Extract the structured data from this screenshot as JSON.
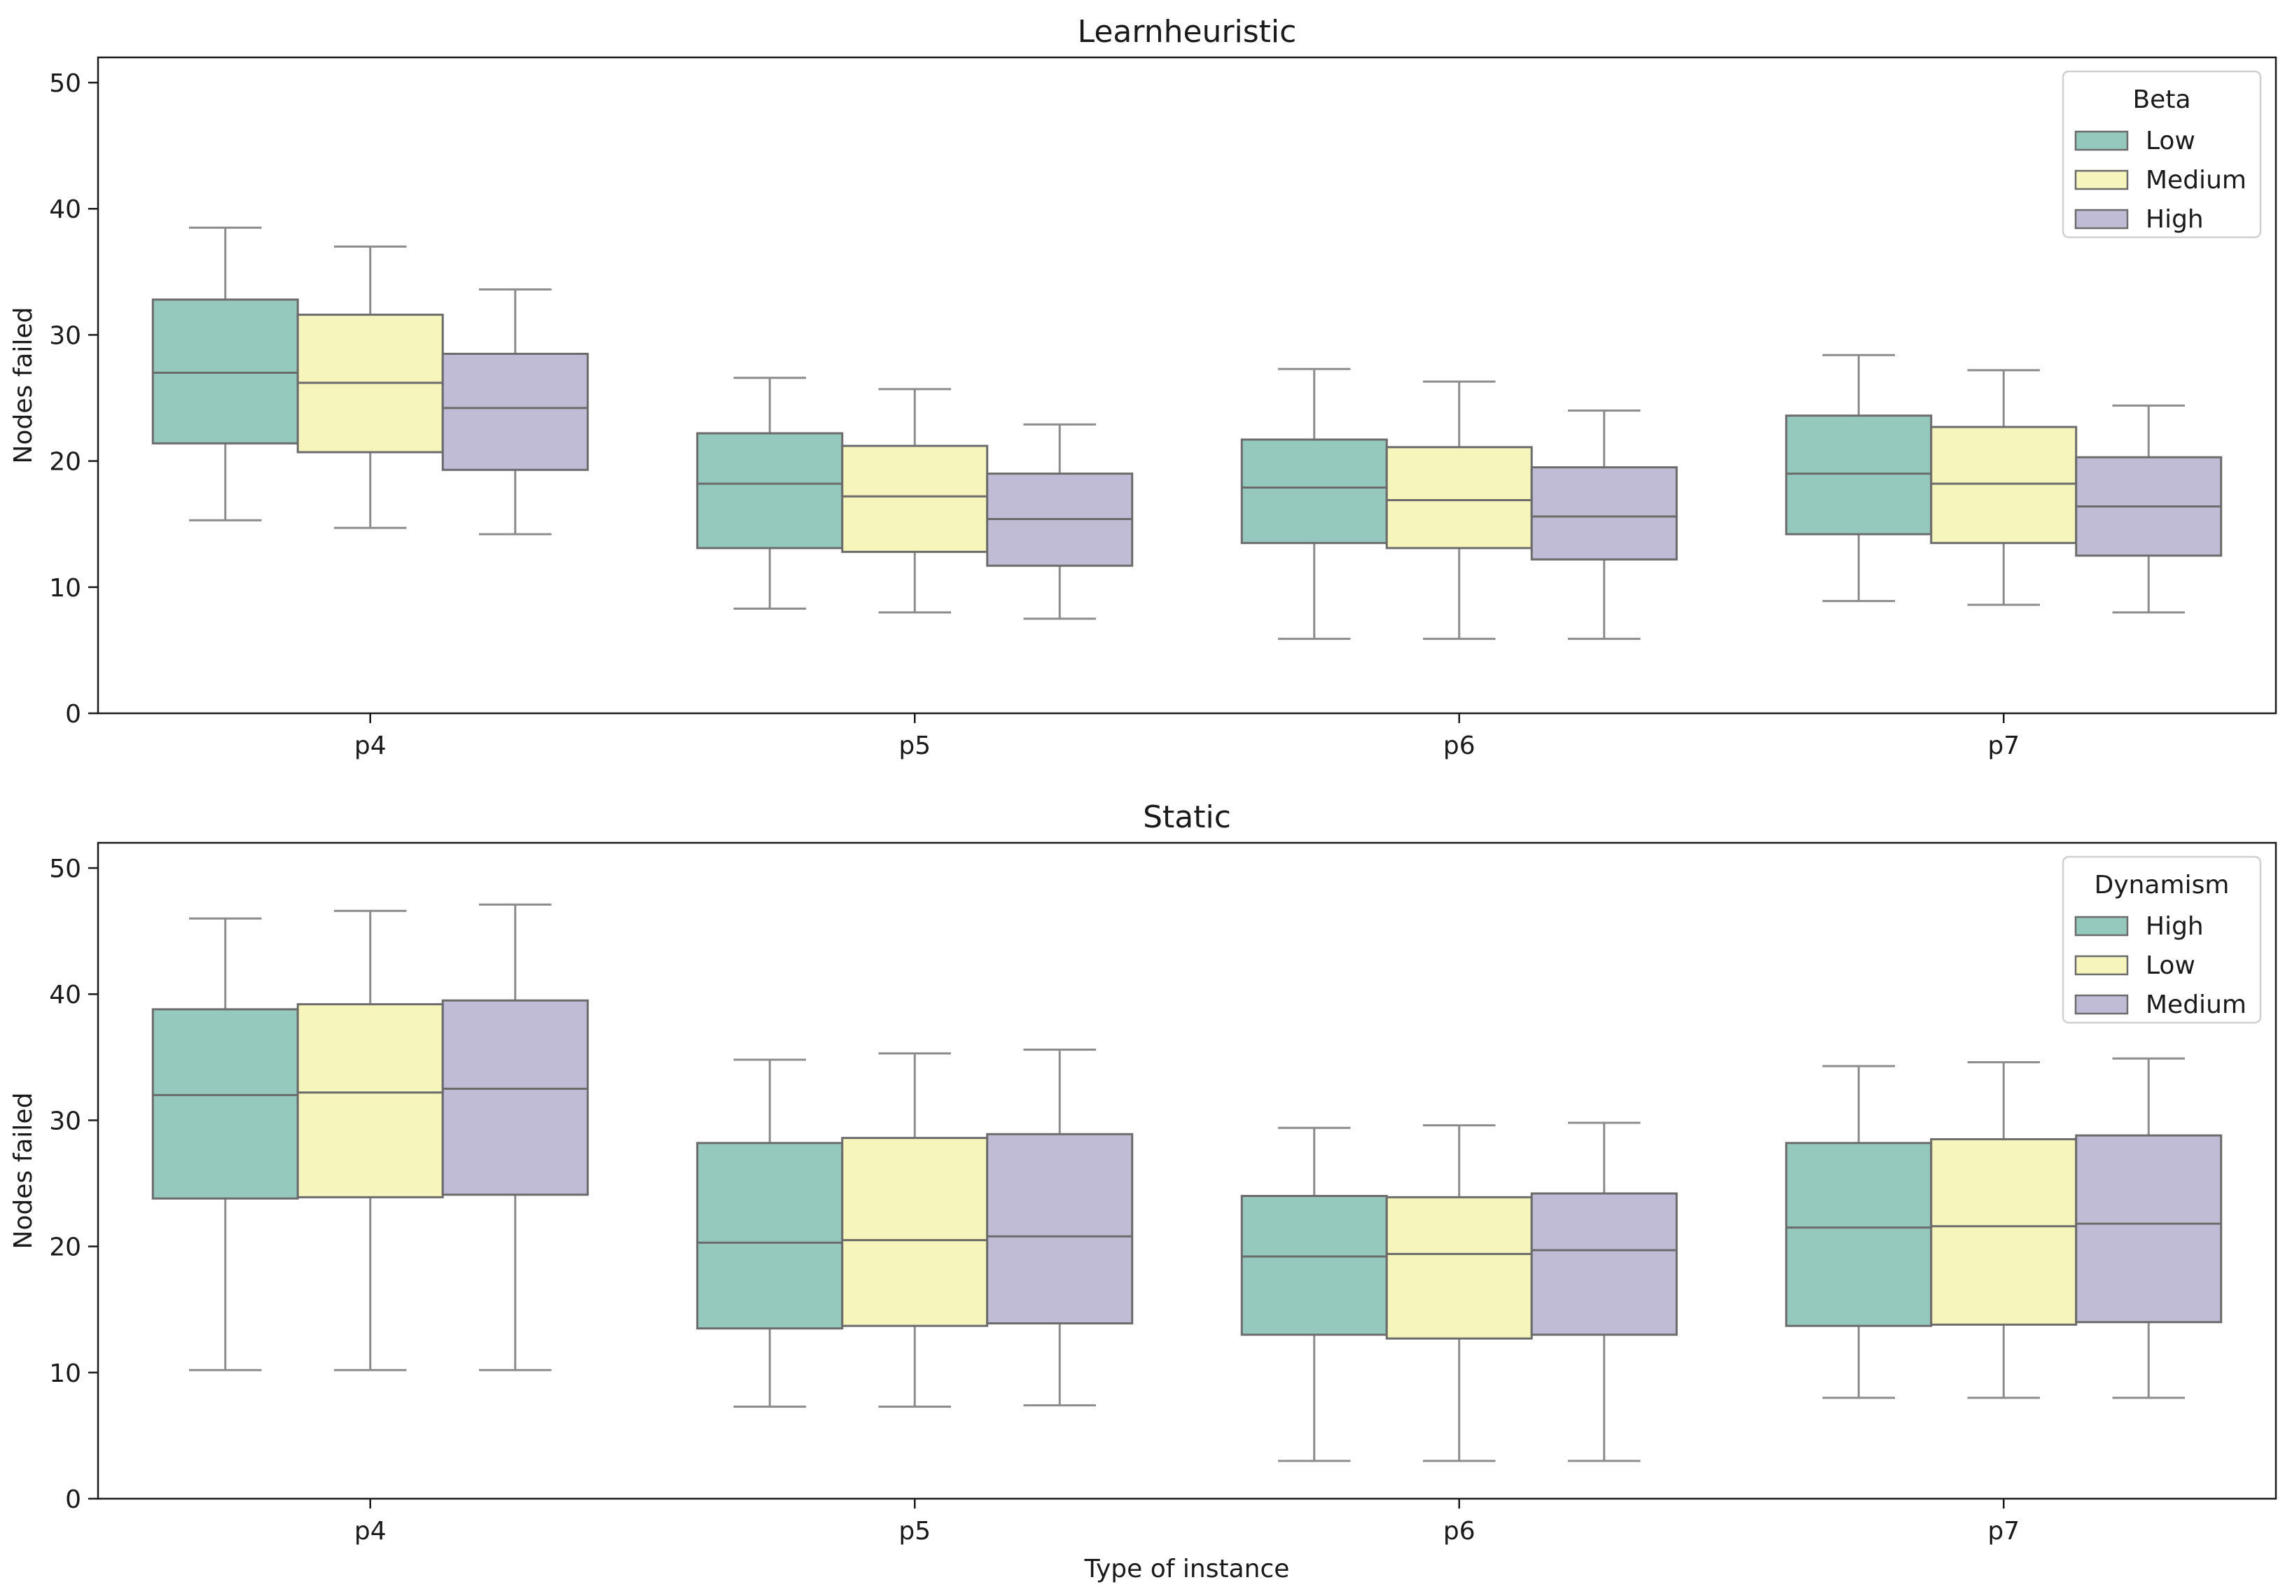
{
  "chart_data": [
    {
      "type": "box",
      "title": "Learnheuristic",
      "xlabel": "",
      "ylabel": "Nodes failed",
      "ylim": [
        0,
        52
      ],
      "yticks": [
        0,
        10,
        20,
        30,
        40,
        50
      ],
      "grid": false,
      "categories": [
        "p4",
        "p5",
        "p6",
        "p7"
      ],
      "legend": {
        "title": "Beta",
        "placement": "top-right",
        "entries": [
          "Low",
          "Medium",
          "High"
        ]
      },
      "series": [
        {
          "name": "Low",
          "color": "#96c9be",
          "boxes": [
            {
              "whisker_low": 15.3,
              "q1": 21.4,
              "median": 27.0,
              "q3": 32.8,
              "whisker_high": 38.5
            },
            {
              "whisker_low": 8.3,
              "q1": 13.1,
              "median": 18.2,
              "q3": 22.2,
              "whisker_high": 26.6
            },
            {
              "whisker_low": 5.9,
              "q1": 13.5,
              "median": 17.9,
              "q3": 21.7,
              "whisker_high": 27.3
            },
            {
              "whisker_low": 8.9,
              "q1": 14.2,
              "median": 19.0,
              "q3": 23.6,
              "whisker_high": 28.4
            }
          ]
        },
        {
          "name": "Medium",
          "color": "#f5f5bc",
          "boxes": [
            {
              "whisker_low": 14.7,
              "q1": 20.7,
              "median": 26.2,
              "q3": 31.6,
              "whisker_high": 37.0
            },
            {
              "whisker_low": 8.0,
              "q1": 12.8,
              "median": 17.2,
              "q3": 21.2,
              "whisker_high": 25.7
            },
            {
              "whisker_low": 5.9,
              "q1": 13.1,
              "median": 16.9,
              "q3": 21.1,
              "whisker_high": 26.3
            },
            {
              "whisker_low": 8.6,
              "q1": 13.5,
              "median": 18.2,
              "q3": 22.7,
              "whisker_high": 27.2
            }
          ]
        },
        {
          "name": "High",
          "color": "#c1bcd6",
          "boxes": [
            {
              "whisker_low": 14.2,
              "q1": 19.3,
              "median": 24.2,
              "q3": 28.5,
              "whisker_high": 33.6
            },
            {
              "whisker_low": 7.5,
              "q1": 11.7,
              "median": 15.4,
              "q3": 19.0,
              "whisker_high": 22.9
            },
            {
              "whisker_low": 5.9,
              "q1": 12.2,
              "median": 15.6,
              "q3": 19.5,
              "whisker_high": 24.0
            },
            {
              "whisker_low": 8.0,
              "q1": 12.5,
              "median": 16.4,
              "q3": 20.3,
              "whisker_high": 24.4
            }
          ]
        }
      ]
    },
    {
      "type": "box",
      "title": "Static",
      "xlabel": "Type of instance",
      "ylabel": "Nodes failed",
      "ylim": [
        0,
        52
      ],
      "yticks": [
        0,
        10,
        20,
        30,
        40,
        50
      ],
      "grid": false,
      "categories": [
        "p4",
        "p5",
        "p6",
        "p7"
      ],
      "legend": {
        "title": "Dynamism",
        "placement": "top-right",
        "entries": [
          "High",
          "Low",
          "Medium"
        ]
      },
      "series": [
        {
          "name": "High",
          "color": "#96c9be",
          "boxes": [
            {
              "whisker_low": 10.2,
              "q1": 23.8,
              "median": 32.0,
              "q3": 38.8,
              "whisker_high": 46.0
            },
            {
              "whisker_low": 7.3,
              "q1": 13.5,
              "median": 20.3,
              "q3": 28.2,
              "whisker_high": 34.8
            },
            {
              "whisker_low": 3.0,
              "q1": 13.0,
              "median": 19.2,
              "q3": 24.0,
              "whisker_high": 29.4
            },
            {
              "whisker_low": 8.0,
              "q1": 13.7,
              "median": 21.5,
              "q3": 28.2,
              "whisker_high": 34.3
            }
          ]
        },
        {
          "name": "Low",
          "color": "#f5f5bc",
          "boxes": [
            {
              "whisker_low": 10.2,
              "q1": 23.9,
              "median": 32.2,
              "q3": 39.2,
              "whisker_high": 46.6
            },
            {
              "whisker_low": 7.3,
              "q1": 13.7,
              "median": 20.5,
              "q3": 28.6,
              "whisker_high": 35.3
            },
            {
              "whisker_low": 3.0,
              "q1": 12.7,
              "median": 19.4,
              "q3": 23.9,
              "whisker_high": 29.6
            },
            {
              "whisker_low": 8.0,
              "q1": 13.8,
              "median": 21.6,
              "q3": 28.5,
              "whisker_high": 34.6
            }
          ]
        },
        {
          "name": "Medium",
          "color": "#c1bcd6",
          "boxes": [
            {
              "whisker_low": 10.2,
              "q1": 24.1,
              "median": 32.5,
              "q3": 39.5,
              "whisker_high": 47.1
            },
            {
              "whisker_low": 7.4,
              "q1": 13.9,
              "median": 20.8,
              "q3": 28.9,
              "whisker_high": 35.6
            },
            {
              "whisker_low": 3.0,
              "q1": 13.0,
              "median": 19.7,
              "q3": 24.2,
              "whisker_high": 29.8
            },
            {
              "whisker_low": 8.0,
              "q1": 14.0,
              "median": 21.8,
              "q3": 28.8,
              "whisker_high": 34.9
            }
          ]
        }
      ]
    }
  ],
  "style": {
    "axis_color": "#1a1a1a",
    "box_edge_color": "#6b6b6b",
    "whisker_color": "#8c8c8c"
  }
}
